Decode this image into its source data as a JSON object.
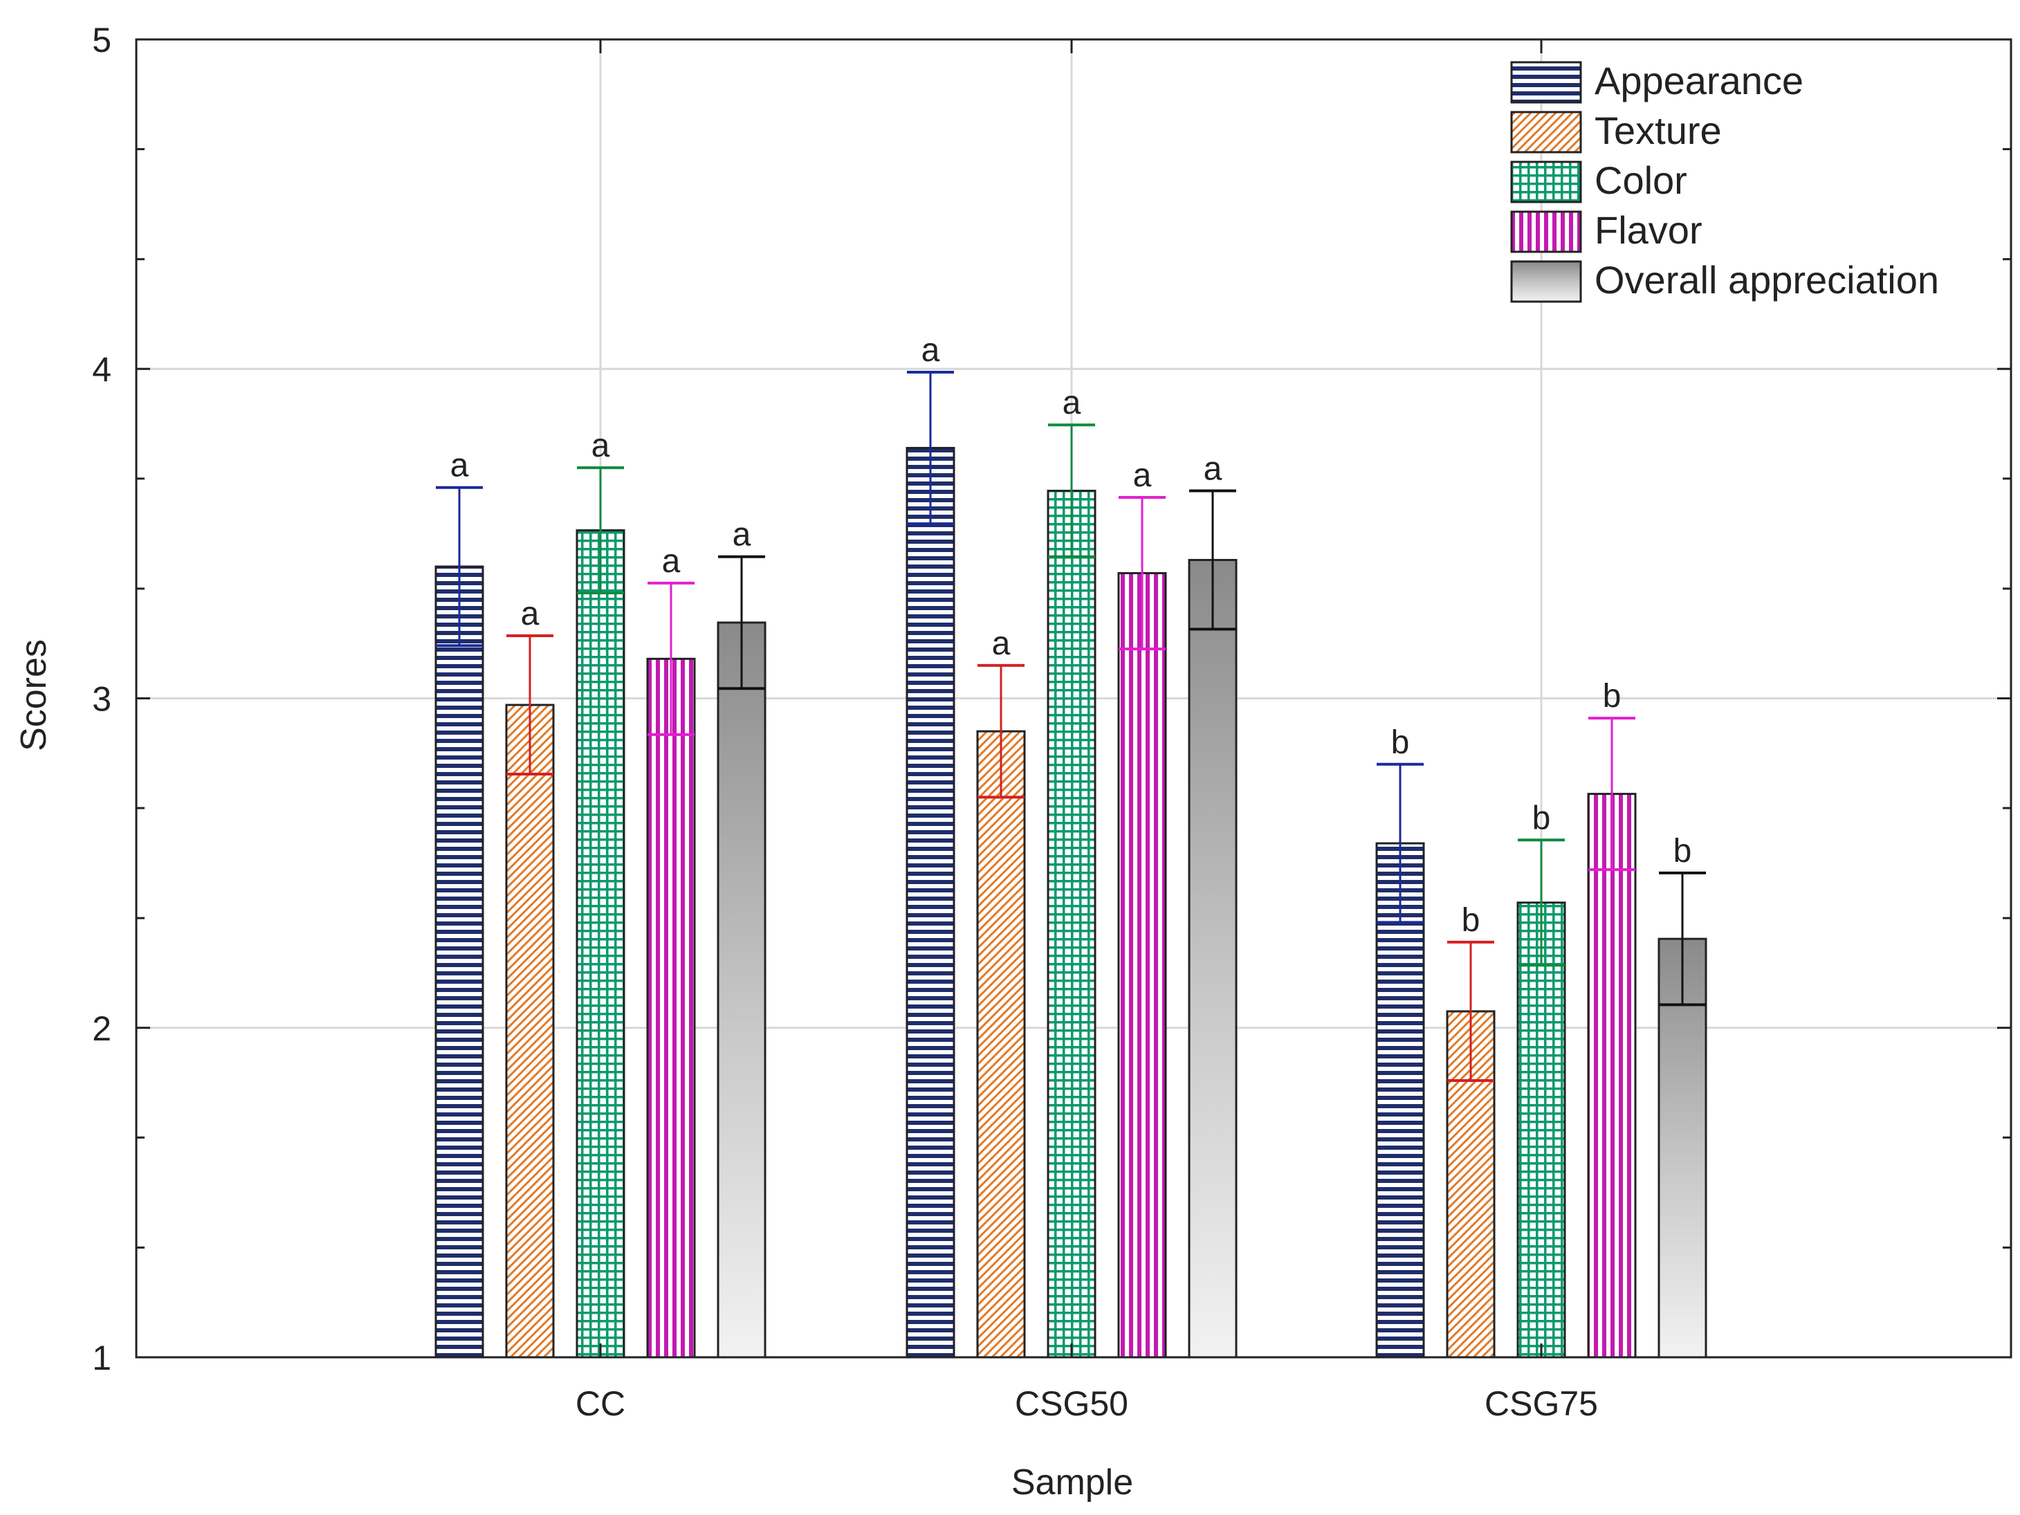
{
  "chart_data": {
    "type": "bar",
    "title": "",
    "xlabel": "Sample",
    "ylabel": "Scores",
    "ylim": [
      1,
      5
    ],
    "yticks": [
      "1",
      "2",
      "3",
      "4",
      "5"
    ],
    "grid": true,
    "legend_position": "top-right",
    "categories": [
      "CC",
      "CSG50",
      "CSG75"
    ],
    "series": [
      {
        "name": "Appearance",
        "values": [
          3.4,
          3.76,
          2.56
        ],
        "errors": [
          0.24,
          0.23,
          0.24
        ],
        "labels": [
          "a",
          "a",
          "b"
        ],
        "color": "#1f2d6b",
        "pattern": "horizontal-lines"
      },
      {
        "name": "Texture",
        "values": [
          2.98,
          2.9,
          2.05
        ],
        "errors": [
          0.21,
          0.2,
          0.21
        ],
        "labels": [
          "a",
          "a",
          "b"
        ],
        "color": "#e07b2a",
        "pattern": "diagonal-lines"
      },
      {
        "name": "Color",
        "values": [
          3.51,
          3.63,
          2.38
        ],
        "errors": [
          0.19,
          0.2,
          0.19
        ],
        "labels": [
          "a",
          "a",
          "b"
        ],
        "color": "#0a9a6e",
        "pattern": "grid"
      },
      {
        "name": "Flavor",
        "values": [
          3.12,
          3.38,
          2.71
        ],
        "errors": [
          0.23,
          0.23,
          0.23
        ],
        "labels": [
          "a",
          "a",
          "b"
        ],
        "color": "#c21bb0",
        "pattern": "vertical-lines"
      },
      {
        "name": "Overall appreciation",
        "values": [
          3.23,
          3.42,
          2.27
        ],
        "errors": [
          0.2,
          0.21,
          0.2
        ],
        "labels": [
          "a",
          "a",
          "b"
        ],
        "color": "#333333",
        "pattern": "gray-gradient"
      }
    ]
  }
}
